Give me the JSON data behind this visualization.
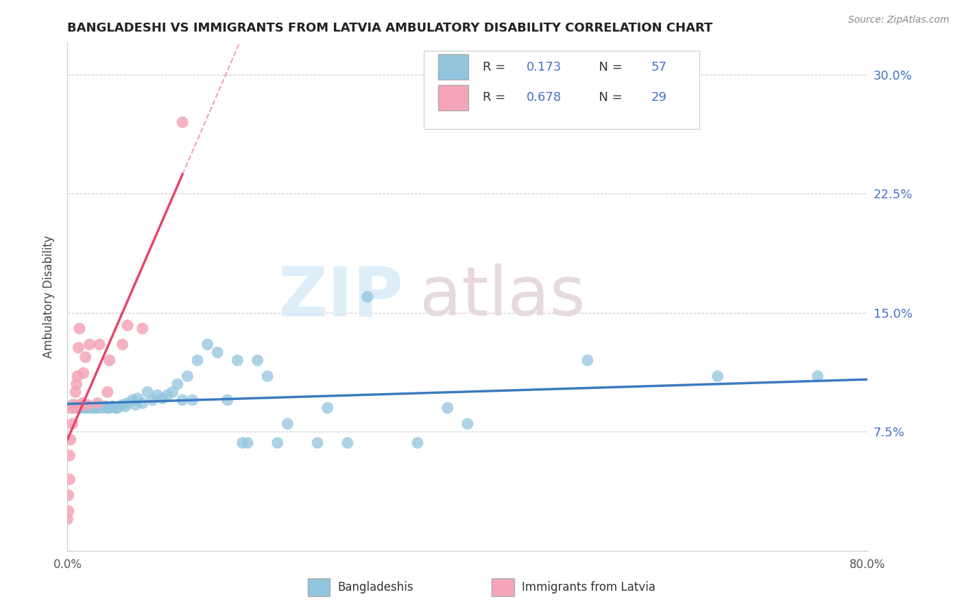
{
  "title": "BANGLADESHI VS IMMIGRANTS FROM LATVIA AMBULATORY DISABILITY CORRELATION CHART",
  "source": "Source: ZipAtlas.com",
  "ylabel": "Ambulatory Disability",
  "xlim": [
    0.0,
    0.8
  ],
  "ylim": [
    0.0,
    0.32
  ],
  "yticks": [
    0.0,
    0.075,
    0.15,
    0.225,
    0.3
  ],
  "yticklabels": [
    "",
    "7.5%",
    "15.0%",
    "22.5%",
    "30.0%"
  ],
  "r_bangladeshi": 0.173,
  "n_bangladeshi": 57,
  "r_latvia": 0.678,
  "n_latvia": 29,
  "blue_color": "#92c5de",
  "pink_color": "#f4a6b8",
  "blue_line_color": "#3a7bbf",
  "pink_line_color": "#e8436a",
  "grid_color": "#cccccc",
  "title_color": "#222222",
  "bangladeshi_x": [
    0.005,
    0.008,
    0.01,
    0.012,
    0.015,
    0.018,
    0.02,
    0.022,
    0.025,
    0.028,
    0.03,
    0.032,
    0.035,
    0.038,
    0.04,
    0.042,
    0.045,
    0.048,
    0.05,
    0.055,
    0.058,
    0.06,
    0.065,
    0.068,
    0.07,
    0.075,
    0.08,
    0.085,
    0.09,
    0.095,
    0.1,
    0.105,
    0.11,
    0.115,
    0.12,
    0.125,
    0.13,
    0.14,
    0.15,
    0.16,
    0.17,
    0.175,
    0.18,
    0.19,
    0.2,
    0.21,
    0.22,
    0.25,
    0.26,
    0.28,
    0.3,
    0.35,
    0.38,
    0.4,
    0.52,
    0.65,
    0.75
  ],
  "bangladeshi_y": [
    0.092,
    0.09,
    0.091,
    0.09,
    0.09,
    0.09,
    0.091,
    0.09,
    0.09,
    0.09,
    0.09,
    0.091,
    0.09,
    0.091,
    0.09,
    0.09,
    0.091,
    0.09,
    0.09,
    0.092,
    0.091,
    0.093,
    0.095,
    0.092,
    0.096,
    0.093,
    0.1,
    0.095,
    0.098,
    0.096,
    0.098,
    0.1,
    0.105,
    0.095,
    0.11,
    0.095,
    0.12,
    0.13,
    0.125,
    0.095,
    0.12,
    0.068,
    0.068,
    0.12,
    0.11,
    0.068,
    0.08,
    0.068,
    0.09,
    0.068,
    0.16,
    0.068,
    0.09,
    0.08,
    0.12,
    0.11,
    0.11
  ],
  "latvia_x": [
    0.0,
    0.001,
    0.001,
    0.002,
    0.002,
    0.003,
    0.003,
    0.005,
    0.006,
    0.007,
    0.008,
    0.009,
    0.01,
    0.011,
    0.012,
    0.014,
    0.015,
    0.016,
    0.018,
    0.02,
    0.022,
    0.03,
    0.032,
    0.04,
    0.042,
    0.055,
    0.06,
    0.075,
    0.115
  ],
  "latvia_y": [
    0.02,
    0.025,
    0.035,
    0.045,
    0.06,
    0.07,
    0.09,
    0.08,
    0.09,
    0.092,
    0.1,
    0.105,
    0.11,
    0.128,
    0.14,
    0.092,
    0.093,
    0.112,
    0.122,
    0.092,
    0.13,
    0.093,
    0.13,
    0.1,
    0.12,
    0.13,
    0.142,
    0.14,
    0.27
  ]
}
